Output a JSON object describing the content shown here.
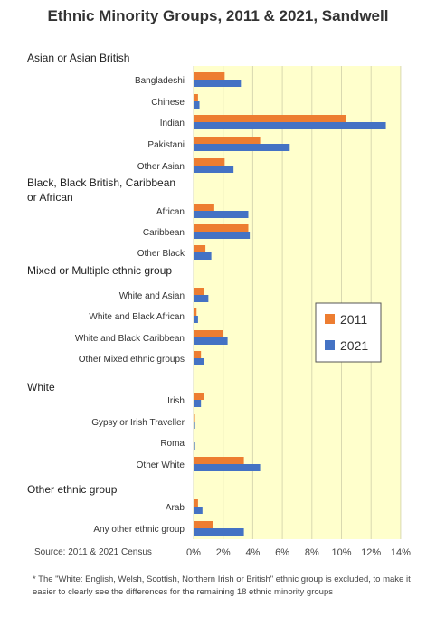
{
  "chart_data": {
    "type": "bar",
    "orientation": "horizontal",
    "title": "Ethnic Minority Groups, 2011 & 2021, Sandwell",
    "xlim": [
      0,
      14
    ],
    "x_tick_labels": [
      "0%",
      "2%",
      "4%",
      "6%",
      "8%",
      "10%",
      "12%",
      "14%"
    ],
    "legend_position": "right",
    "series": [
      {
        "name": "2011",
        "color": "#ED7D31"
      },
      {
        "name": "2021",
        "color": "#4472C4"
      }
    ],
    "groups": [
      {
        "label": "Asian or Asian British",
        "rows": [
          {
            "category": "Bangladeshi",
            "v2011": 2.1,
            "v2021": 3.2
          },
          {
            "category": "Chinese",
            "v2011": 0.3,
            "v2021": 0.4
          },
          {
            "category": "Indian",
            "v2011": 10.3,
            "v2021": 13.0
          },
          {
            "category": "Pakistani",
            "v2011": 4.5,
            "v2021": 6.5
          },
          {
            "category": "Other Asian",
            "v2011": 2.1,
            "v2021": 2.7
          }
        ]
      },
      {
        "label": "Black, Black British, Caribbean or African",
        "rows": [
          {
            "category": "African",
            "v2011": 1.4,
            "v2021": 3.7
          },
          {
            "category": "Caribbean",
            "v2011": 3.7,
            "v2021": 3.8
          },
          {
            "category": "Other Black",
            "v2011": 0.8,
            "v2021": 1.2
          }
        ]
      },
      {
        "label": "Mixed or Multiple ethnic group",
        "rows": [
          {
            "category": "White and Asian",
            "v2011": 0.7,
            "v2021": 1.0
          },
          {
            "category": "White and Black African",
            "v2011": 0.2,
            "v2021": 0.3
          },
          {
            "category": "White and Black Caribbean",
            "v2011": 2.0,
            "v2021": 2.3
          },
          {
            "category": "Other Mixed ethnic groups",
            "v2011": 0.5,
            "v2021": 0.7
          }
        ]
      },
      {
        "label": "White",
        "rows": [
          {
            "category": "Irish",
            "v2011": 0.7,
            "v2021": 0.5
          },
          {
            "category": "Gypsy or Irish Traveller",
            "v2011": 0.05,
            "v2021": 0.1
          },
          {
            "category": "Roma",
            "v2011": 0.0,
            "v2021": 0.1
          },
          {
            "category": "Other White",
            "v2011": 3.4,
            "v2021": 4.5
          }
        ]
      },
      {
        "label": "Other ethnic group",
        "rows": [
          {
            "category": "Arab",
            "v2011": 0.3,
            "v2021": 0.6
          },
          {
            "category": "Any other ethnic group",
            "v2011": 1.3,
            "v2021": 3.4
          }
        ]
      }
    ]
  },
  "source": "Source: 2011 & 2021 Census",
  "footnote": "* The \"White: English, Welsh, Scottish, Northern Irish or British\" ethnic group is excluded, to make it easier to clearly see the differences for the remaining 18 ethnic minority groups"
}
